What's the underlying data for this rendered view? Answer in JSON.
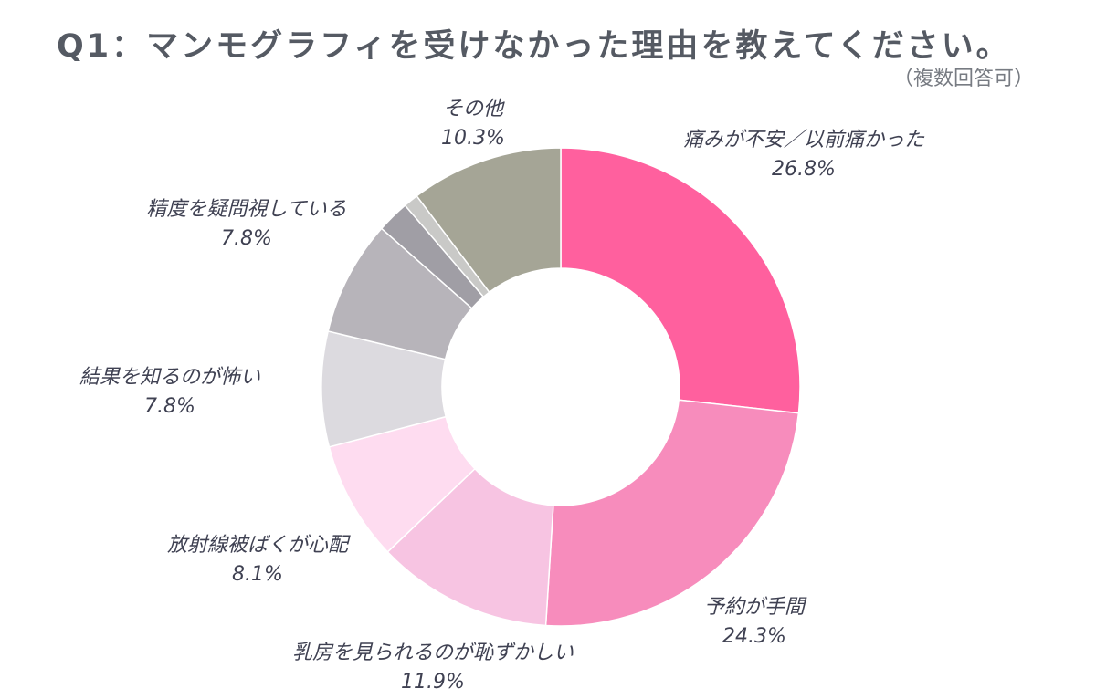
{
  "title": "Q1：マンモグラフィを受けなかった理由を教えてください。",
  "subtitle": "（複数回答可）",
  "chart_data": {
    "type": "pie",
    "subtype": "donut",
    "title": "Q1：マンモグラフィを受けなかった理由を教えてください。",
    "subtitle": "（複数回答可）",
    "unit": "%",
    "slices": [
      {
        "label": "痛みが不安／以前痛かった",
        "value": 26.8,
        "value_label": "26.8%",
        "color": "#ff609e"
      },
      {
        "label": "予約が手間",
        "value": 24.3,
        "value_label": "24.3%",
        "color": "#f78cbc"
      },
      {
        "label": "乳房を見られるのが恥ずかしい",
        "value": 11.9,
        "value_label": "11.9%",
        "color": "#f7c4e2"
      },
      {
        "label": "放射線被ばくが心配",
        "value": 8.1,
        "value_label": "8.1%",
        "color": "#fedcf0"
      },
      {
        "label": "結果を知るのが怖い",
        "value": 7.8,
        "value_label": "7.8%",
        "color": "#dcdadf"
      },
      {
        "label": "精度を疑問視している",
        "value": 7.8,
        "value_label": "7.8%",
        "color": "#b7b4ba"
      },
      {
        "label": "",
        "value": 2.2,
        "value_label": "",
        "color": "#a09ea5"
      },
      {
        "label": "",
        "value": 1.0,
        "value_label": "",
        "color": "#c9c9c7"
      },
      {
        "label": "その他",
        "value": 10.3,
        "value_label": "10.3%",
        "color": "#a5a596"
      }
    ]
  }
}
